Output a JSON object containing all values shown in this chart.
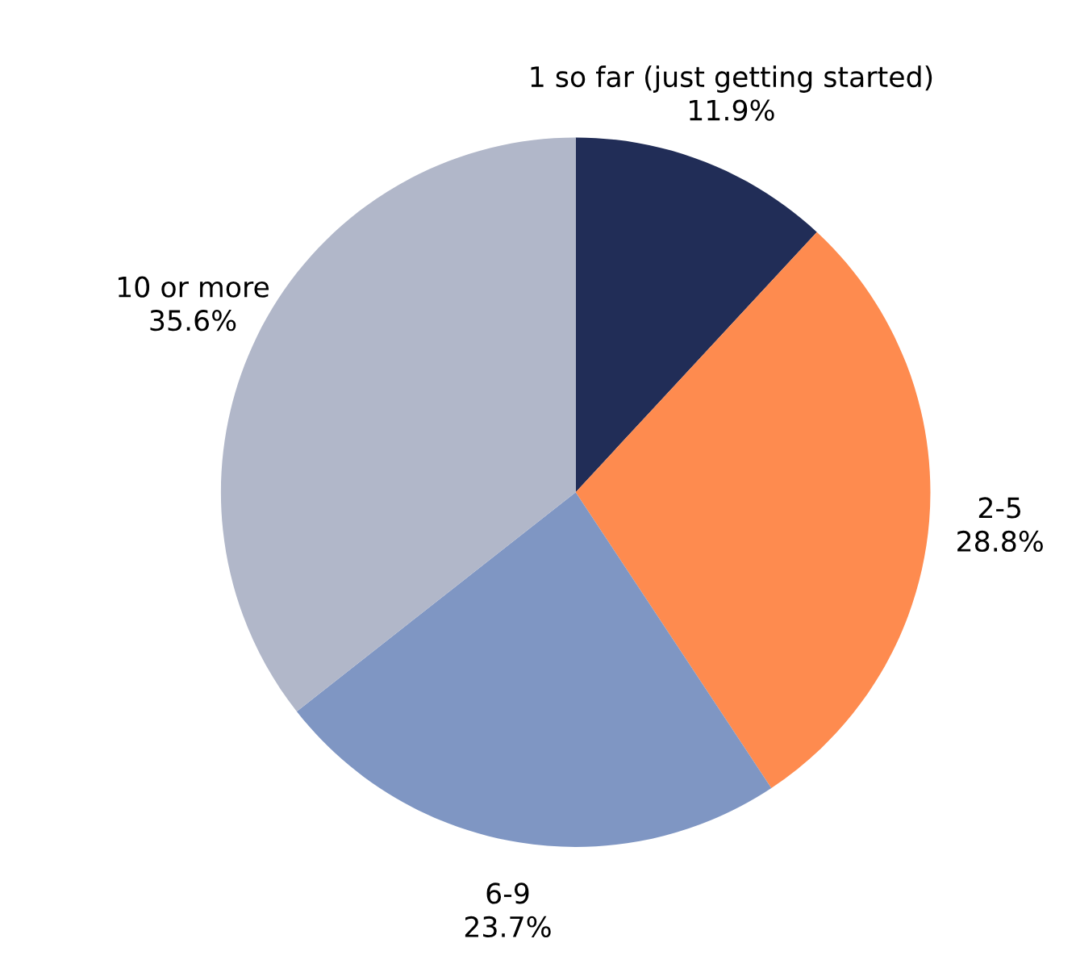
{
  "chart_data": {
    "type": "pie",
    "categories": [
      "1 so far (just getting started)",
      "2-5",
      "6-9",
      "10 or more"
    ],
    "values": [
      11.9,
      28.8,
      23.7,
      35.6
    ],
    "value_labels": [
      "11.9%",
      "28.8%",
      "23.7%",
      "35.6%"
    ],
    "colors": [
      "#212d57",
      "#fe8b4f",
      "#7f96c3",
      "#b1b7c9"
    ],
    "legend": false
  }
}
